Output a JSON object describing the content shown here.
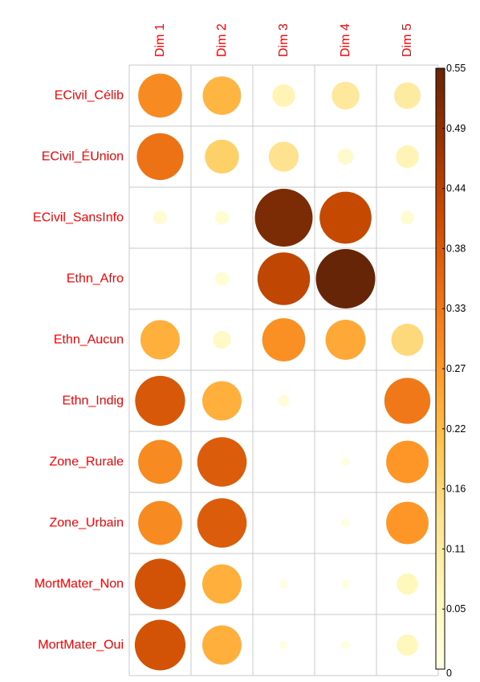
{
  "chart_data": {
    "type": "heatmap",
    "title": "",
    "rows": [
      "ECivil_Célib",
      "ECivil_ÉUnion",
      "ECivil_SansInfo",
      "Ethn_Afro",
      "Ethn_Aucun",
      "Ethn_Indig",
      "Zone_Rurale",
      "Zone_Urbain",
      "MortMater_Non",
      "MortMater_Oui"
    ],
    "columns": [
      "Dim 1",
      "Dim 2",
      "Dim 3",
      "Dim 4",
      "Dim 5"
    ],
    "values": [
      [
        0.3,
        0.23,
        0.08,
        0.12,
        0.11
      ],
      [
        0.34,
        0.18,
        0.14,
        0.04,
        0.08
      ],
      [
        0.03,
        0.03,
        0.52,
        0.42,
        0.03
      ],
      [
        0.0,
        0.03,
        0.43,
        0.55,
        0.0
      ],
      [
        0.24,
        0.05,
        0.29,
        0.25,
        0.16
      ],
      [
        0.39,
        0.24,
        0.02,
        0.0,
        0.33
      ],
      [
        0.3,
        0.38,
        0.0,
        0.01,
        0.28
      ],
      [
        0.3,
        0.38,
        0.0,
        0.01,
        0.28
      ],
      [
        0.4,
        0.24,
        0.01,
        0.01,
        0.07
      ],
      [
        0.4,
        0.24,
        0.01,
        0.01,
        0.07
      ]
    ],
    "marker": "circle",
    "colorbar": {
      "min": 0,
      "max": 0.55,
      "ticks": [
        "0",
        "0.05",
        "0.11",
        "0.16",
        "0.22",
        "0.27",
        "0.33",
        "0.38",
        "0.44",
        "0.49",
        "0.55"
      ],
      "colors": [
        "#ffffe5",
        "#fff7bc",
        "#fee391",
        "#fec44f",
        "#fe9929",
        "#ec7014",
        "#cc4c02",
        "#993404",
        "#662506"
      ]
    },
    "grid": true,
    "legend_position": "right",
    "label_color": "#ff0000"
  }
}
